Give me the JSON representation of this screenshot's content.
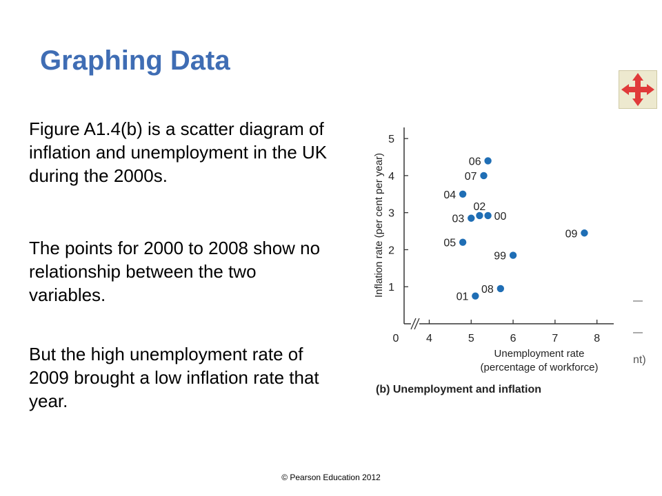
{
  "slide": {
    "title": "Graphing Data",
    "paragraphs": [
      "Figure A1.4(b) is a scatter diagram of inflation and unemployment in the UK during the 2000s.",
      "The points for 2000 to 2008 show no relationship between the two variables.",
      "But the high unemployment rate of 2009 brought a low inflation rate that year."
    ],
    "copyright": "© Pearson Education 2012",
    "nav_icon": "four-way-arrows-icon",
    "clipped_fragment": "nt)"
  },
  "colors": {
    "title": "#3f6db4",
    "point": "#1f6eb5",
    "nav_arrows": "#e03a3a",
    "nav_background": "#ede9cf"
  },
  "chart_data": {
    "type": "scatter",
    "title": "",
    "caption": "(b) Unemployment and inflation",
    "xlabel": "Unemployment rate",
    "xlabel_sub": "(percentage of workforce)",
    "ylabel": "Inflation rate (per cent per year)",
    "xlim": [
      3.4,
      8.4
    ],
    "ylim": [
      0,
      5.3
    ],
    "x_origin_label": "0",
    "x_ticks": [
      4,
      5,
      6,
      7,
      8
    ],
    "y_ticks": [
      1,
      2,
      3,
      4,
      5
    ],
    "axis_break": true,
    "points": [
      {
        "label": "99",
        "x": 6.0,
        "y": 1.85,
        "label_side": "left"
      },
      {
        "label": "00",
        "x": 5.4,
        "y": 2.92,
        "label_side": "right"
      },
      {
        "label": "01",
        "x": 5.1,
        "y": 0.75,
        "label_side": "left"
      },
      {
        "label": "02",
        "x": 5.2,
        "y": 2.92,
        "label_side": "above"
      },
      {
        "label": "03",
        "x": 5.0,
        "y": 2.85,
        "label_side": "left"
      },
      {
        "label": "04",
        "x": 4.8,
        "y": 3.5,
        "label_side": "left"
      },
      {
        "label": "05",
        "x": 4.8,
        "y": 2.2,
        "label_side": "left"
      },
      {
        "label": "06",
        "x": 5.4,
        "y": 4.4,
        "label_side": "left"
      },
      {
        "label": "07",
        "x": 5.3,
        "y": 4.0,
        "label_side": "left"
      },
      {
        "label": "08",
        "x": 5.7,
        "y": 0.95,
        "label_side": "left"
      },
      {
        "label": "09",
        "x": 7.7,
        "y": 2.45,
        "label_side": "left"
      }
    ]
  }
}
